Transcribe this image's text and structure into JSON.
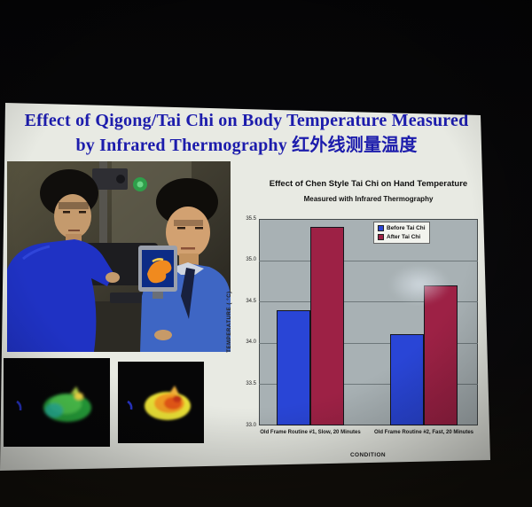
{
  "slide": {
    "title_line1": "Effect of Qigong/Tai Chi on Body Temperature Measured",
    "title_line2": "by Infrared Thermography 红外线测量温度",
    "title_color": "#1c1cac"
  },
  "chart_data": {
    "type": "bar",
    "title": "Effect of Chen Style Tai Chi on Hand Temperature",
    "subtitle": "Measured with Infrared Thermography",
    "categories": [
      "Old Frame Routine #1, Slow, 20 Minutes",
      "Old Frame Routine #2, Fast, 20 Minutes"
    ],
    "series": [
      {
        "name": "Before Tai Chi",
        "color": "#2945d6",
        "values": [
          34.4,
          34.1
        ]
      },
      {
        "name": "After Tai Chi",
        "color": "#9d2145",
        "values": [
          35.4,
          34.7
        ]
      }
    ],
    "xlabel": "CONDITION",
    "ylabel": "TEMPERATURE ( °C)",
    "ylim": [
      33.0,
      35.5
    ],
    "yticks": [
      "35.5",
      "35.0",
      "34.5",
      "34.0",
      "33.5",
      "33.0"
    ],
    "grid": true,
    "legend_position": "top-right",
    "colors": {
      "plot_bg": "#a8b1b4",
      "gridline": "#6e787b"
    }
  }
}
